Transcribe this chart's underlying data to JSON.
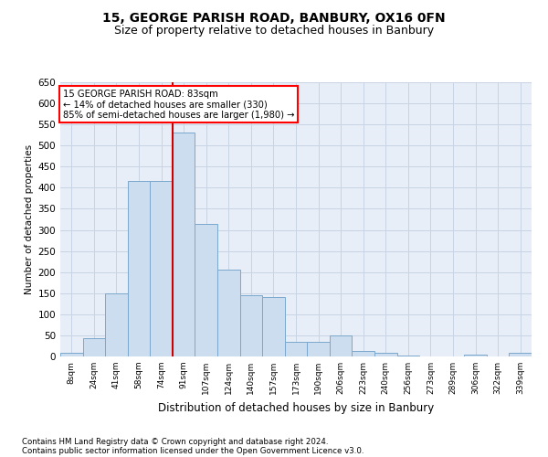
{
  "title1": "15, GEORGE PARISH ROAD, BANBURY, OX16 0FN",
  "title2": "Size of property relative to detached houses in Banbury",
  "xlabel": "Distribution of detached houses by size in Banbury",
  "ylabel": "Number of detached properties",
  "footnote1": "Contains HM Land Registry data © Crown copyright and database right 2024.",
  "footnote2": "Contains public sector information licensed under the Open Government Licence v3.0.",
  "categories": [
    "8sqm",
    "24sqm",
    "41sqm",
    "58sqm",
    "74sqm",
    "91sqm",
    "107sqm",
    "124sqm",
    "140sqm",
    "157sqm",
    "173sqm",
    "190sqm",
    "206sqm",
    "223sqm",
    "240sqm",
    "256sqm",
    "273sqm",
    "289sqm",
    "306sqm",
    "322sqm",
    "339sqm"
  ],
  "values": [
    8,
    43,
    150,
    415,
    415,
    530,
    315,
    205,
    145,
    140,
    35,
    35,
    50,
    12,
    8,
    3,
    0,
    0,
    4,
    0,
    8
  ],
  "bar_color": "#ccddf0",
  "bar_edge_color": "#7aa8cc",
  "vline_color": "#cc0000",
  "vline_x_index": 5,
  "annotation_text": "15 GEORGE PARISH ROAD: 83sqm\n← 14% of detached houses are smaller (330)\n85% of semi-detached houses are larger (1,980) →",
  "ylim": [
    0,
    650
  ],
  "yticks": [
    0,
    50,
    100,
    150,
    200,
    250,
    300,
    350,
    400,
    450,
    500,
    550,
    600,
    650
  ],
  "grid_color": "#c8d4e4",
  "bg_color": "#e8eef8",
  "title1_fontsize": 10,
  "title2_fontsize": 9
}
